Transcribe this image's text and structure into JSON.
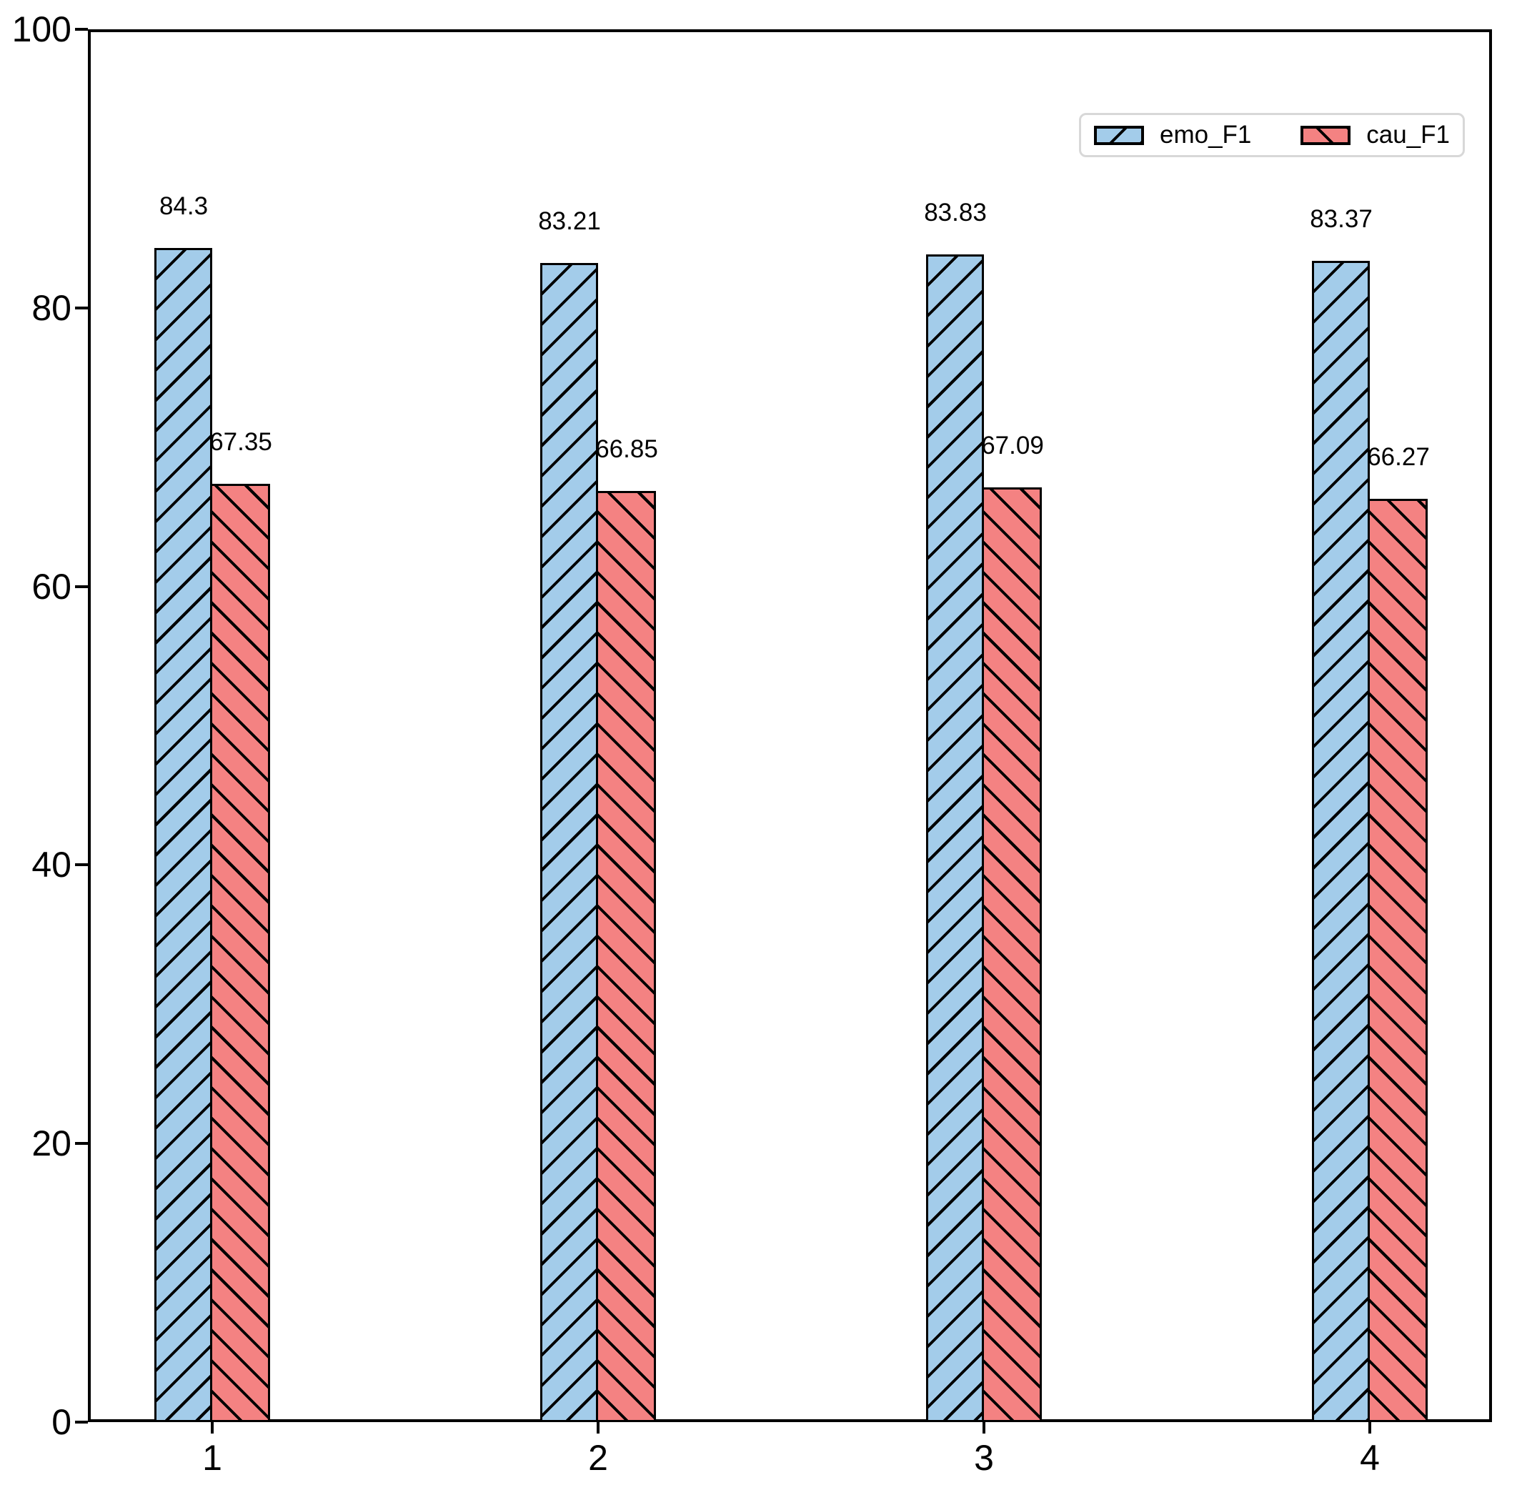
{
  "chart_data": {
    "type": "bar",
    "categories": [
      "1",
      "2",
      "3",
      "4"
    ],
    "series": [
      {
        "name": "emo_F1",
        "color": "#A3CCEA",
        "hatch": "/",
        "values": [
          84.3,
          83.21,
          83.83,
          83.37
        ]
      },
      {
        "name": "cau_F1",
        "color": "#F48282",
        "hatch": "\\",
        "values": [
          67.35,
          66.85,
          67.09,
          66.27
        ]
      }
    ],
    "bar_labels": [
      [
        "84.3",
        "83.21",
        "83.83",
        "83.37"
      ],
      [
        "67.35",
        "66.85",
        "67.09",
        "66.27"
      ]
    ],
    "title": "",
    "xlabel": "",
    "ylabel": "",
    "ylim": [
      0,
      100
    ],
    "yticks": [
      "0",
      "20",
      "40",
      "60",
      "80",
      "100"
    ],
    "grid": false,
    "legend_position": "upper right",
    "edge_color": "#000000",
    "background_color": "#ffffff"
  }
}
